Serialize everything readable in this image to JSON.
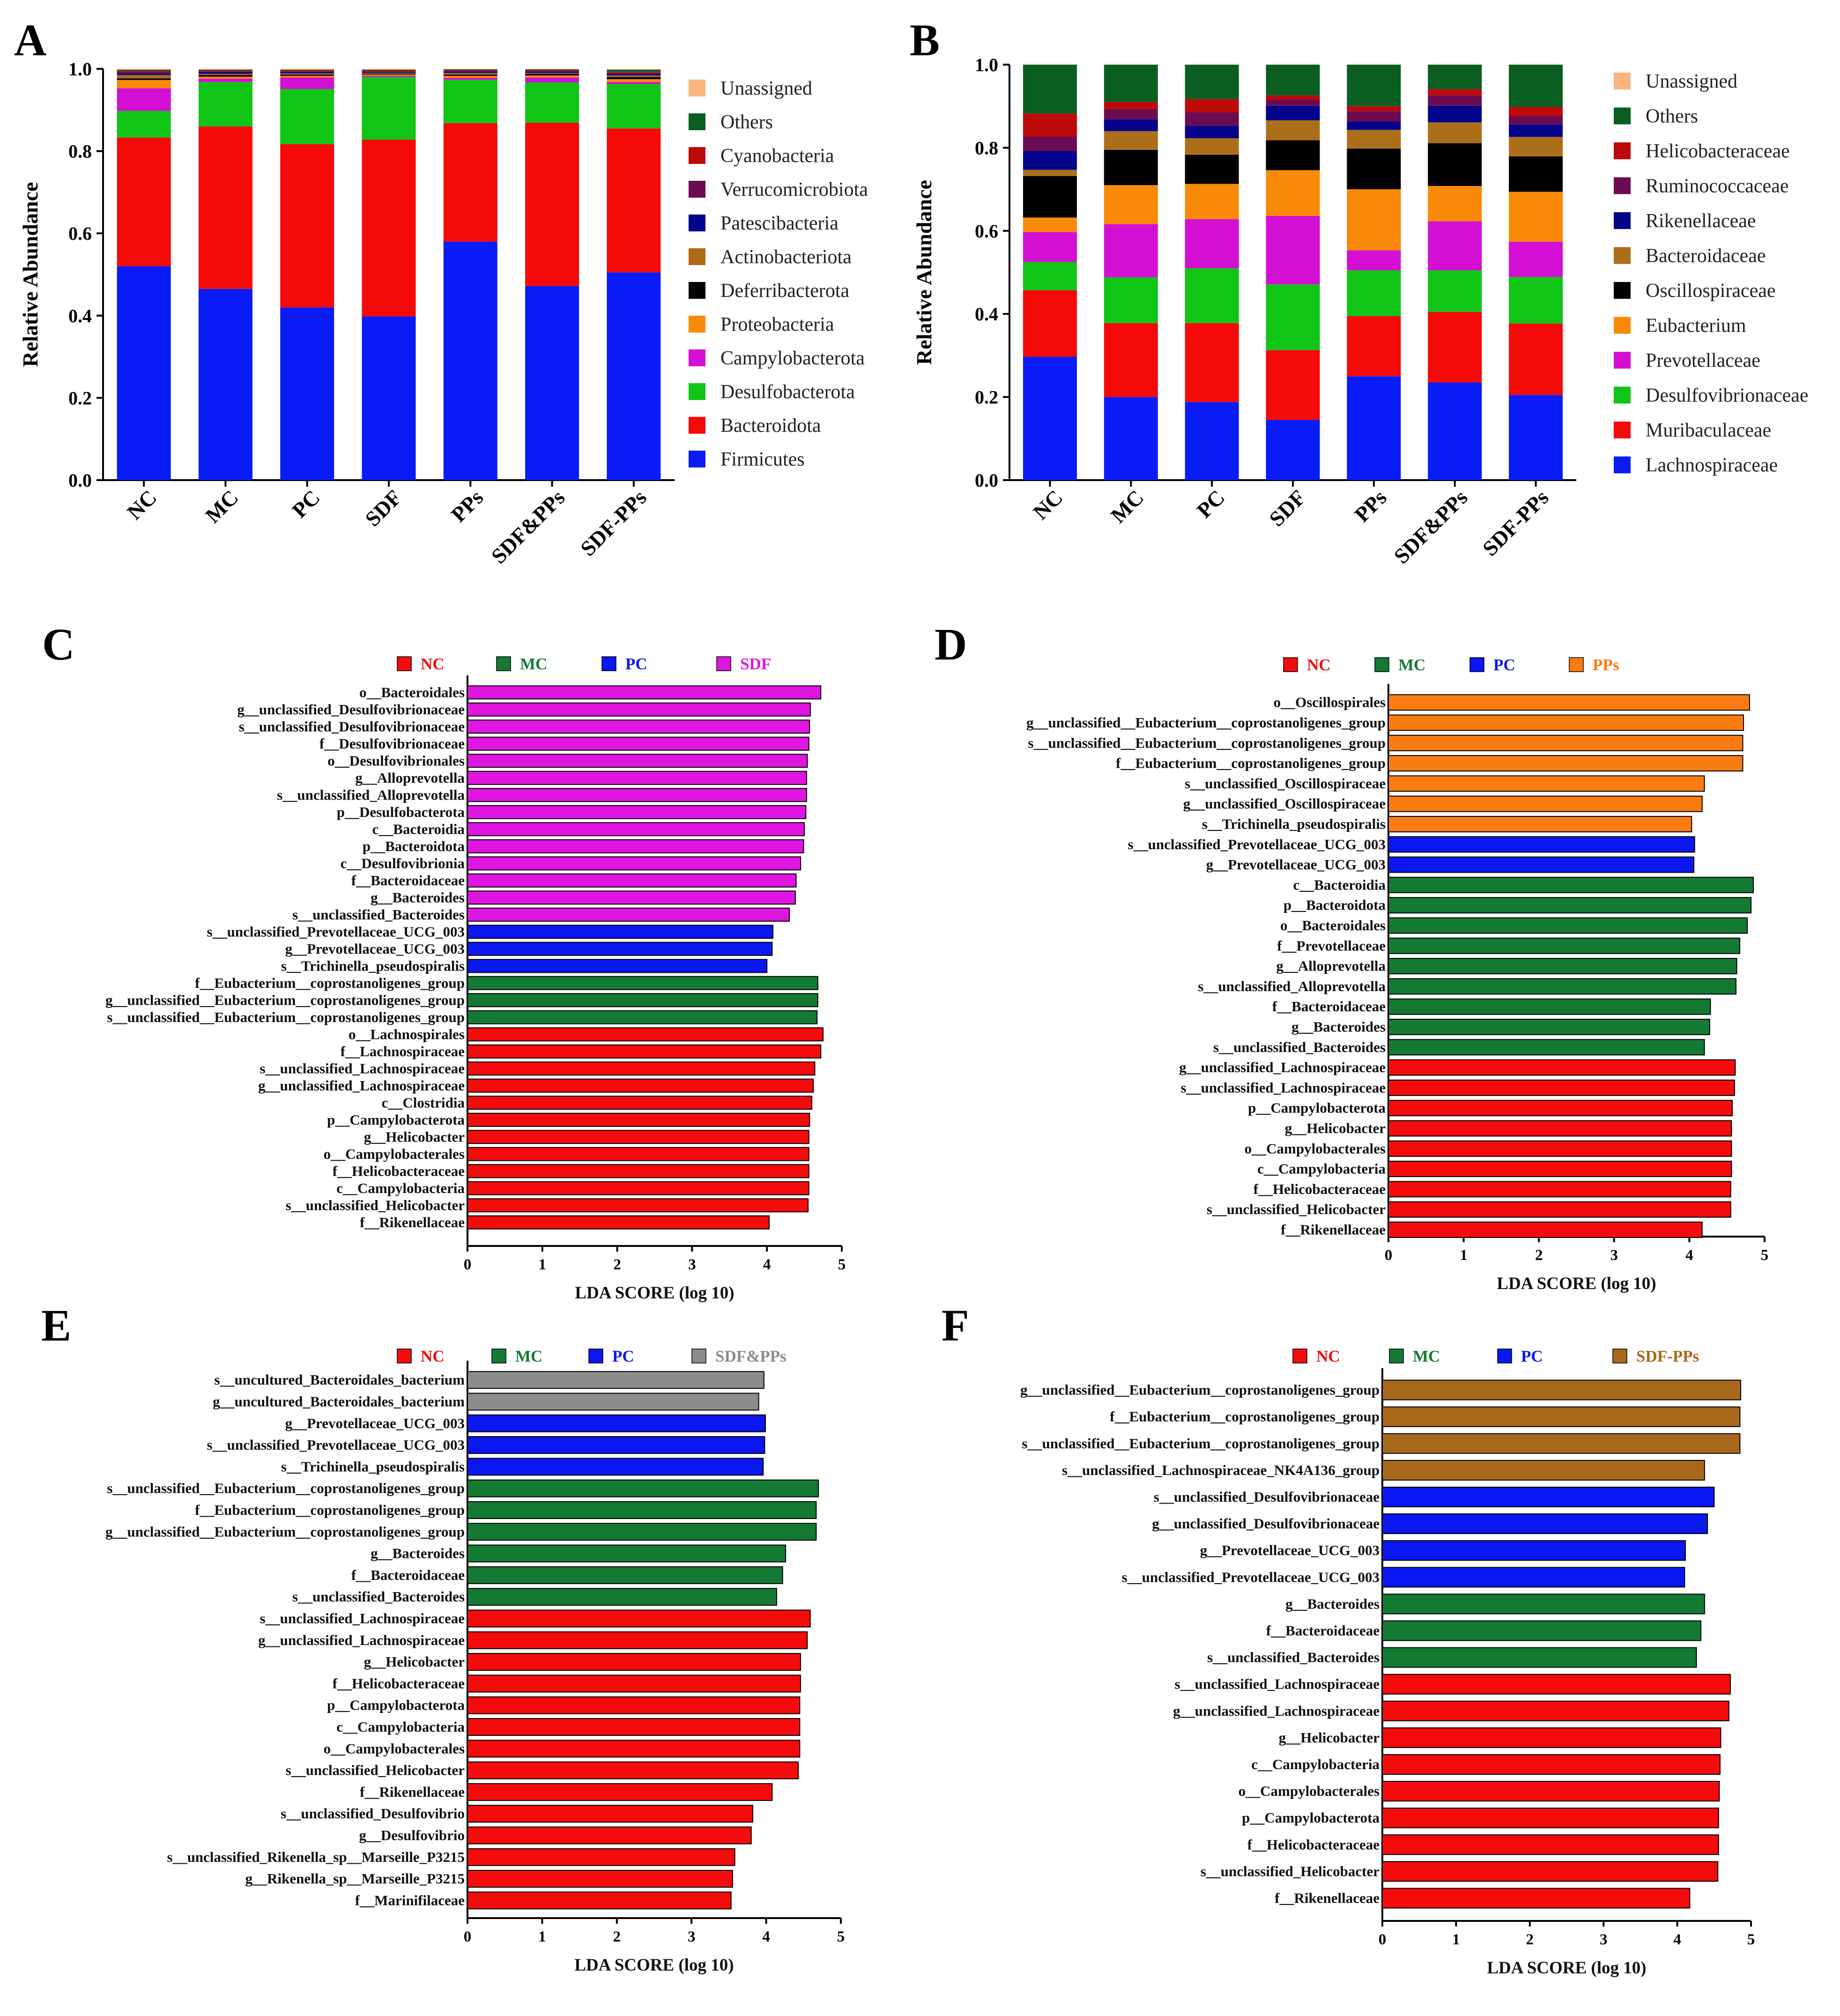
{
  "colors": {
    "Firmicutes": "#0a1cf5",
    "Bacteroidota": "#f50a0a",
    "Desulfobacterota": "#10c516",
    "Campylobacterota": "#d40fd4",
    "Proteobacteria": "#f98a08",
    "Deferribacterota": "#000000",
    "Actinobacteriota": "#b06a17",
    "Patescibacteria": "#03038c",
    "Verrucomicrobiota": "#6b0c52",
    "Cyanobacteria": "#bd0a0a",
    "Others": "#0b5e22",
    "Unassigned": "#f8b580",
    "Lachnospiraceae": "#0a1cf5",
    "Muribaculaceae": "#f50a0a",
    "Desulfovibrionaceae": "#10c516",
    "Prevotellaceae": "#d40fd4",
    "Eubacterium": "#f98a08",
    "Oscillospiraceae": "#000000",
    "Bacteroidaceae": "#ac6f19",
    "Rikenellaceae": "#03038c",
    "Ruminococcaceae": "#6b0c52",
    "Helicobacteraceae": "#bd0a0a",
    "NC": "#f40c0c",
    "MC": "#147a33",
    "PC": "#0b17f0",
    "SDF": "#df16df",
    "PPs": "#f97c12",
    "SDF&PPs": "#8c8c8c",
    "SDF-PPs": "#a8681b"
  },
  "chart_data": [
    {
      "panel": "A",
      "type": "bar",
      "stacked": true,
      "ylabel": "Relative Abundance",
      "ylim": [
        0,
        1.0
      ],
      "yticks": [
        "0.0",
        "0.2",
        "0.4",
        "0.6",
        "0.8",
        "1.0"
      ],
      "categories": [
        "NC",
        "MC",
        "PC",
        "SDF",
        "PPs",
        "SDF&PPs",
        "SDF-PPs"
      ],
      "legend": [
        "Unassigned",
        "Others",
        "Cyanobacteria",
        "Verrucomicrobiota",
        "Patescibacteria",
        "Actinobacteriota",
        "Deferribacterota",
        "Proteobacteria",
        "Campylobacterota",
        "Desulfobacterota",
        "Bacteroidota",
        "Firmicutes"
      ],
      "series": [
        {
          "name": "Firmicutes",
          "values": [
            0.52,
            0.465,
            0.42,
            0.398,
            0.58,
            0.472,
            0.505
          ]
        },
        {
          "name": "Bacteroidota",
          "values": [
            0.313,
            0.395,
            0.397,
            0.43,
            0.288,
            0.397,
            0.35
          ]
        },
        {
          "name": "Desulfobacterota",
          "values": [
            0.065,
            0.108,
            0.134,
            0.152,
            0.105,
            0.098,
            0.108
          ]
        },
        {
          "name": "Campylobacterota",
          "values": [
            0.055,
            0.008,
            0.028,
            0.003,
            0.005,
            0.012,
            0.005
          ]
        },
        {
          "name": "Proteobacteria",
          "values": [
            0.02,
            0.005,
            0.004,
            0.003,
            0.005,
            0.005,
            0.007
          ]
        },
        {
          "name": "Deferribacterota",
          "values": [
            0.004,
            0.004,
            0.003,
            0.002,
            0.003,
            0.004,
            0.005
          ]
        },
        {
          "name": "Actinobacteriota",
          "values": [
            0.008,
            0.003,
            0.003,
            0.002,
            0.004,
            0.002,
            0.004
          ]
        },
        {
          "name": "Patescibacteria",
          "values": [
            0.004,
            0.004,
            0.003,
            0.002,
            0.003,
            0.003,
            0.004
          ]
        },
        {
          "name": "Verrucomicrobiota",
          "values": [
            0.003,
            0.002,
            0.002,
            0.002,
            0.002,
            0.002,
            0.002
          ]
        },
        {
          "name": "Cyanobacteria",
          "values": [
            0.003,
            0.002,
            0.002,
            0.002,
            0.002,
            0.002,
            0.003
          ]
        },
        {
          "name": "Others",
          "values": [
            0.003,
            0.002,
            0.002,
            0.002,
            0.002,
            0.002,
            0.005
          ]
        },
        {
          "name": "Unassigned",
          "values": [
            0.002,
            0.002,
            0.002,
            0.002,
            0.001,
            0.001,
            0.002
          ]
        }
      ]
    },
    {
      "panel": "B",
      "type": "bar",
      "stacked": true,
      "ylabel": "Relative Abundance",
      "ylim": [
        0,
        1.0
      ],
      "yticks": [
        "0.0",
        "0.2",
        "0.4",
        "0.6",
        "0.8",
        "1.0"
      ],
      "categories": [
        "NC",
        "MC",
        "PC",
        "SDF",
        "PPs",
        "SDF&PPs",
        "SDF-PPs"
      ],
      "legend": [
        "Unassigned",
        "Others",
        "Helicobacteraceae",
        "Ruminococcaceae",
        "Rikenellaceae",
        "Bacteroidaceae",
        "Oscillospiraceae",
        "Eubacterium",
        "Prevotellaceae",
        "Desulfovibrionaceae",
        "Muribaculaceae",
        "Lachnospiraceae"
      ],
      "series": [
        {
          "name": "Lachnospiraceae",
          "values": [
            0.297,
            0.2,
            0.188,
            0.145,
            0.25,
            0.235,
            0.205
          ]
        },
        {
          "name": "Muribaculaceae",
          "values": [
            0.16,
            0.178,
            0.19,
            0.168,
            0.145,
            0.17,
            0.172
          ]
        },
        {
          "name": "Desulfovibrionaceae",
          "values": [
            0.068,
            0.11,
            0.132,
            0.158,
            0.11,
            0.1,
            0.112
          ]
        },
        {
          "name": "Prevotellaceae",
          "values": [
            0.072,
            0.128,
            0.118,
            0.165,
            0.048,
            0.118,
            0.085
          ]
        },
        {
          "name": "Eubacterium",
          "values": [
            0.035,
            0.094,
            0.085,
            0.11,
            0.147,
            0.085,
            0.12
          ]
        },
        {
          "name": "Oscillospiraceae",
          "values": [
            0.1,
            0.085,
            0.07,
            0.072,
            0.098,
            0.103,
            0.085
          ]
        },
        {
          "name": "Bacteroidaceae",
          "values": [
            0.015,
            0.045,
            0.04,
            0.048,
            0.045,
            0.05,
            0.047
          ]
        },
        {
          "name": "Rikenellaceae",
          "values": [
            0.045,
            0.028,
            0.03,
            0.035,
            0.02,
            0.04,
            0.03
          ]
        },
        {
          "name": "Ruminococcaceae",
          "values": [
            0.035,
            0.025,
            0.032,
            0.015,
            0.025,
            0.025,
            0.02
          ]
        },
        {
          "name": "Helicobacteraceae",
          "values": [
            0.055,
            0.017,
            0.032,
            0.01,
            0.012,
            0.015,
            0.022
          ]
        },
        {
          "name": "Others",
          "values": [
            0.118,
            0.09,
            0.083,
            0.074,
            0.1,
            0.059,
            0.102
          ]
        },
        {
          "name": "Unassigned",
          "values": [
            0.0,
            0.0,
            0.0,
            0.0,
            0.0,
            0.0,
            0.0
          ]
        }
      ]
    },
    {
      "panel": "C",
      "type": "bar",
      "orientation": "horizontal",
      "xlabel": "LDA SCORE (log 10)",
      "xlim": [
        0,
        5
      ],
      "xticks": [
        "0",
        "1",
        "2",
        "3",
        "4",
        "5"
      ],
      "legend": [
        "NC",
        "MC",
        "PC",
        "SDF"
      ],
      "labels": [
        "o__Bacteroidales",
        "g__unclassified_Desulfovibrionaceae",
        "s__unclassified_Desulfovibrionaceae",
        "f__Desulfovibrionaceae",
        "o__Desulfovibrionales",
        "g__Alloprevotella",
        "s__unclassified_Alloprevotella",
        "p__Desulfobacterota",
        "c__Bacteroidia",
        "p__Bacteroidota",
        "c__Desulfovibrionia",
        "f__Bacteroidaceae",
        "g__Bacteroides",
        "s__unclassified_Bacteroides",
        "s__unclassified_Prevotellaceae_UCG_003",
        "g__Prevotellaceae_UCG_003",
        "s__Trichinella_pseudospiralis",
        "f__Eubacterium__coprostanoligenes_group",
        "g__unclassified__Eubacterium__coprostanoligenes_group",
        "s__unclassified__Eubacterium__coprostanoligenes_group",
        "o__Lachnospirales",
        "f__Lachnospiraceae",
        "s__unclassified_Lachnospiraceae",
        "g__unclassified_Lachnospiraceae",
        "c__Clostridia",
        "p__Campylobacterota",
        "g__Helicobacter",
        "o__Campylobacterales",
        "f__Helicobacteraceae",
        "c__Campylobacteria",
        "s__unclassified_Helicobacter",
        "f__Rikenellaceae"
      ],
      "values": [
        4.72,
        4.58,
        4.57,
        4.56,
        4.54,
        4.53,
        4.53,
        4.52,
        4.5,
        4.49,
        4.45,
        4.39,
        4.38,
        4.3,
        4.08,
        4.07,
        4.0,
        4.68,
        4.68,
        4.67,
        4.75,
        4.72,
        4.64,
        4.62,
        4.6,
        4.57,
        4.56,
        4.56,
        4.56,
        4.56,
        4.55,
        4.03
      ],
      "groups": [
        "SDF",
        "SDF",
        "SDF",
        "SDF",
        "SDF",
        "SDF",
        "SDF",
        "SDF",
        "SDF",
        "SDF",
        "SDF",
        "SDF",
        "SDF",
        "SDF",
        "PC",
        "PC",
        "PC",
        "MC",
        "MC",
        "MC",
        "NC",
        "NC",
        "NC",
        "NC",
        "NC",
        "NC",
        "NC",
        "NC",
        "NC",
        "NC",
        "NC",
        "NC"
      ]
    },
    {
      "panel": "D",
      "type": "bar",
      "orientation": "horizontal",
      "xlabel": "LDA SCORE (log 10)",
      "xlim": [
        0,
        5
      ],
      "xticks": [
        "0",
        "1",
        "2",
        "3",
        "4",
        "5"
      ],
      "legend": [
        "NC",
        "MC",
        "PC",
        "PPs"
      ],
      "labels": [
        "o__Oscillospirales",
        "g__unclassified__Eubacterium__coprostanoligenes_group",
        "s__unclassified__Eubacterium__coprostanoligenes_group",
        "f__Eubacterium__coprostanoligenes_group",
        "s__unclassified_Oscillospiraceae",
        "g__unclassified_Oscillospiraceae",
        "s__Trichinella_pseudospiralis",
        "s__unclassified_Prevotellaceae_UCG_003",
        "g__Prevotellaceae_UCG_003",
        "c__Bacteroidia",
        "p__Bacteroidota",
        "o__Bacteroidales",
        "f__Prevotellaceae",
        "g__Alloprevotella",
        "s__unclassified_Alloprevotella",
        "f__Bacteroidaceae",
        "g__Bacteroides",
        "s__unclassified_Bacteroides",
        "g__unclassified_Lachnospiraceae",
        "s__unclassified_Lachnospiraceae",
        "p__Campylobacterota",
        "g__Helicobacter",
        "o__Campylobacterales",
        "c__Campylobacteria",
        "f__Helicobacteraceae",
        "s__unclassified_Helicobacter",
        "f__Rikenellaceae"
      ],
      "values": [
        4.8,
        4.72,
        4.71,
        4.71,
        4.2,
        4.17,
        4.03,
        4.07,
        4.06,
        4.85,
        4.82,
        4.77,
        4.67,
        4.63,
        4.62,
        4.28,
        4.27,
        4.2,
        4.61,
        4.6,
        4.57,
        4.56,
        4.56,
        4.56,
        4.55,
        4.55,
        4.17
      ],
      "groups": [
        "PPs",
        "PPs",
        "PPs",
        "PPs",
        "PPs",
        "PPs",
        "PPs",
        "PC",
        "PC",
        "MC",
        "MC",
        "MC",
        "MC",
        "MC",
        "MC",
        "MC",
        "MC",
        "MC",
        "NC",
        "NC",
        "NC",
        "NC",
        "NC",
        "NC",
        "NC",
        "NC",
        "NC"
      ]
    },
    {
      "panel": "E",
      "type": "bar",
      "orientation": "horizontal",
      "xlabel": "LDA SCORE (log 10)",
      "xlim": [
        0,
        5
      ],
      "xticks": [
        "0",
        "1",
        "2",
        "3",
        "4",
        "5"
      ],
      "legend": [
        "NC",
        "MC",
        "PC",
        "SDF&PPs"
      ],
      "labels": [
        "s__uncultured_Bacteroidales_bacterium",
        "g__uncultured_Bacteroidales_bacterium",
        "g__Prevotellaceae_UCG_003",
        "s__unclassified_Prevotellaceae_UCG_003",
        "s__Trichinella_pseudospiralis",
        "s__unclassified__Eubacterium__coprostanoligenes_group",
        "f__Eubacterium__coprostanoligenes_group",
        "g__unclassified__Eubacterium__coprostanoligenes_group",
        "g__Bacteroides",
        "f__Bacteroidaceae",
        "s__unclassified_Bacteroides",
        "s__unclassified_Lachnospiraceae",
        "g__unclassified_Lachnospiraceae",
        "g__Helicobacter",
        "f__Helicobacteraceae",
        "p__Campylobacterota",
        "c__Campylobacteria",
        "o__Campylobacterales",
        "s__unclassified_Helicobacter",
        "f__Rikenellaceae",
        "s__unclassified_Desulfovibrio",
        "g__Desulfovibrio",
        "s__unclassified_Rikenella_sp__Marseille_P3215",
        "g__Rikenella_sp__Marseille_P3215",
        "f__Marinifilaceae"
      ],
      "values": [
        3.97,
        3.9,
        3.99,
        3.98,
        3.96,
        4.7,
        4.67,
        4.67,
        4.26,
        4.22,
        4.14,
        4.59,
        4.55,
        4.46,
        4.46,
        4.45,
        4.45,
        4.45,
        4.43,
        4.08,
        3.82,
        3.8,
        3.58,
        3.55,
        3.53
      ],
      "groups": [
        "SDF&PPs",
        "SDF&PPs",
        "PC",
        "PC",
        "PC",
        "MC",
        "MC",
        "MC",
        "MC",
        "MC",
        "MC",
        "NC",
        "NC",
        "NC",
        "NC",
        "NC",
        "NC",
        "NC",
        "NC",
        "NC",
        "NC",
        "NC",
        "NC",
        "NC",
        "NC"
      ]
    },
    {
      "panel": "F",
      "type": "bar",
      "orientation": "horizontal",
      "xlabel": "LDA SCORE (log 10)",
      "xlim": [
        0,
        5
      ],
      "xticks": [
        "0",
        "1",
        "2",
        "3",
        "4",
        "5"
      ],
      "legend": [
        "NC",
        "MC",
        "PC",
        "SDF-PPs"
      ],
      "labels": [
        "g__unclassified__Eubacterium__coprostanoligenes_group",
        "f__Eubacterium__coprostanoligenes_group",
        "s__unclassified__Eubacterium__coprostanoligenes_group",
        "s__unclassified_Lachnospiraceae_NK4A136_group",
        "s__unclassified_Desulfovibrionaceae",
        "g__unclassified_Desulfovibrionaceae",
        "g__Prevotellaceae_UCG_003",
        "s__unclassified_Prevotellaceae_UCG_003",
        "g__Bacteroides",
        "f__Bacteroidaceae",
        "s__unclassified_Bacteroides",
        "s__unclassified_Lachnospiraceae",
        "g__unclassified_Lachnospiraceae",
        "g__Helicobacter",
        "c__Campylobacteria",
        "o__Campylobacterales",
        "p__Campylobacterota",
        "f__Helicobacteraceae",
        "s__unclassified_Helicobacter",
        "f__Rikenellaceae"
      ],
      "values": [
        4.86,
        4.85,
        4.85,
        4.37,
        4.5,
        4.41,
        4.11,
        4.1,
        4.37,
        4.32,
        4.26,
        4.72,
        4.7,
        4.59,
        4.58,
        4.57,
        4.56,
        4.56,
        4.55,
        4.17
      ],
      "groups": [
        "SDF-PPs",
        "SDF-PPs",
        "SDF-PPs",
        "SDF-PPs",
        "PC",
        "PC",
        "PC",
        "PC",
        "MC",
        "MC",
        "MC",
        "NC",
        "NC",
        "NC",
        "NC",
        "NC",
        "NC",
        "NC",
        "NC",
        "NC"
      ]
    }
  ]
}
